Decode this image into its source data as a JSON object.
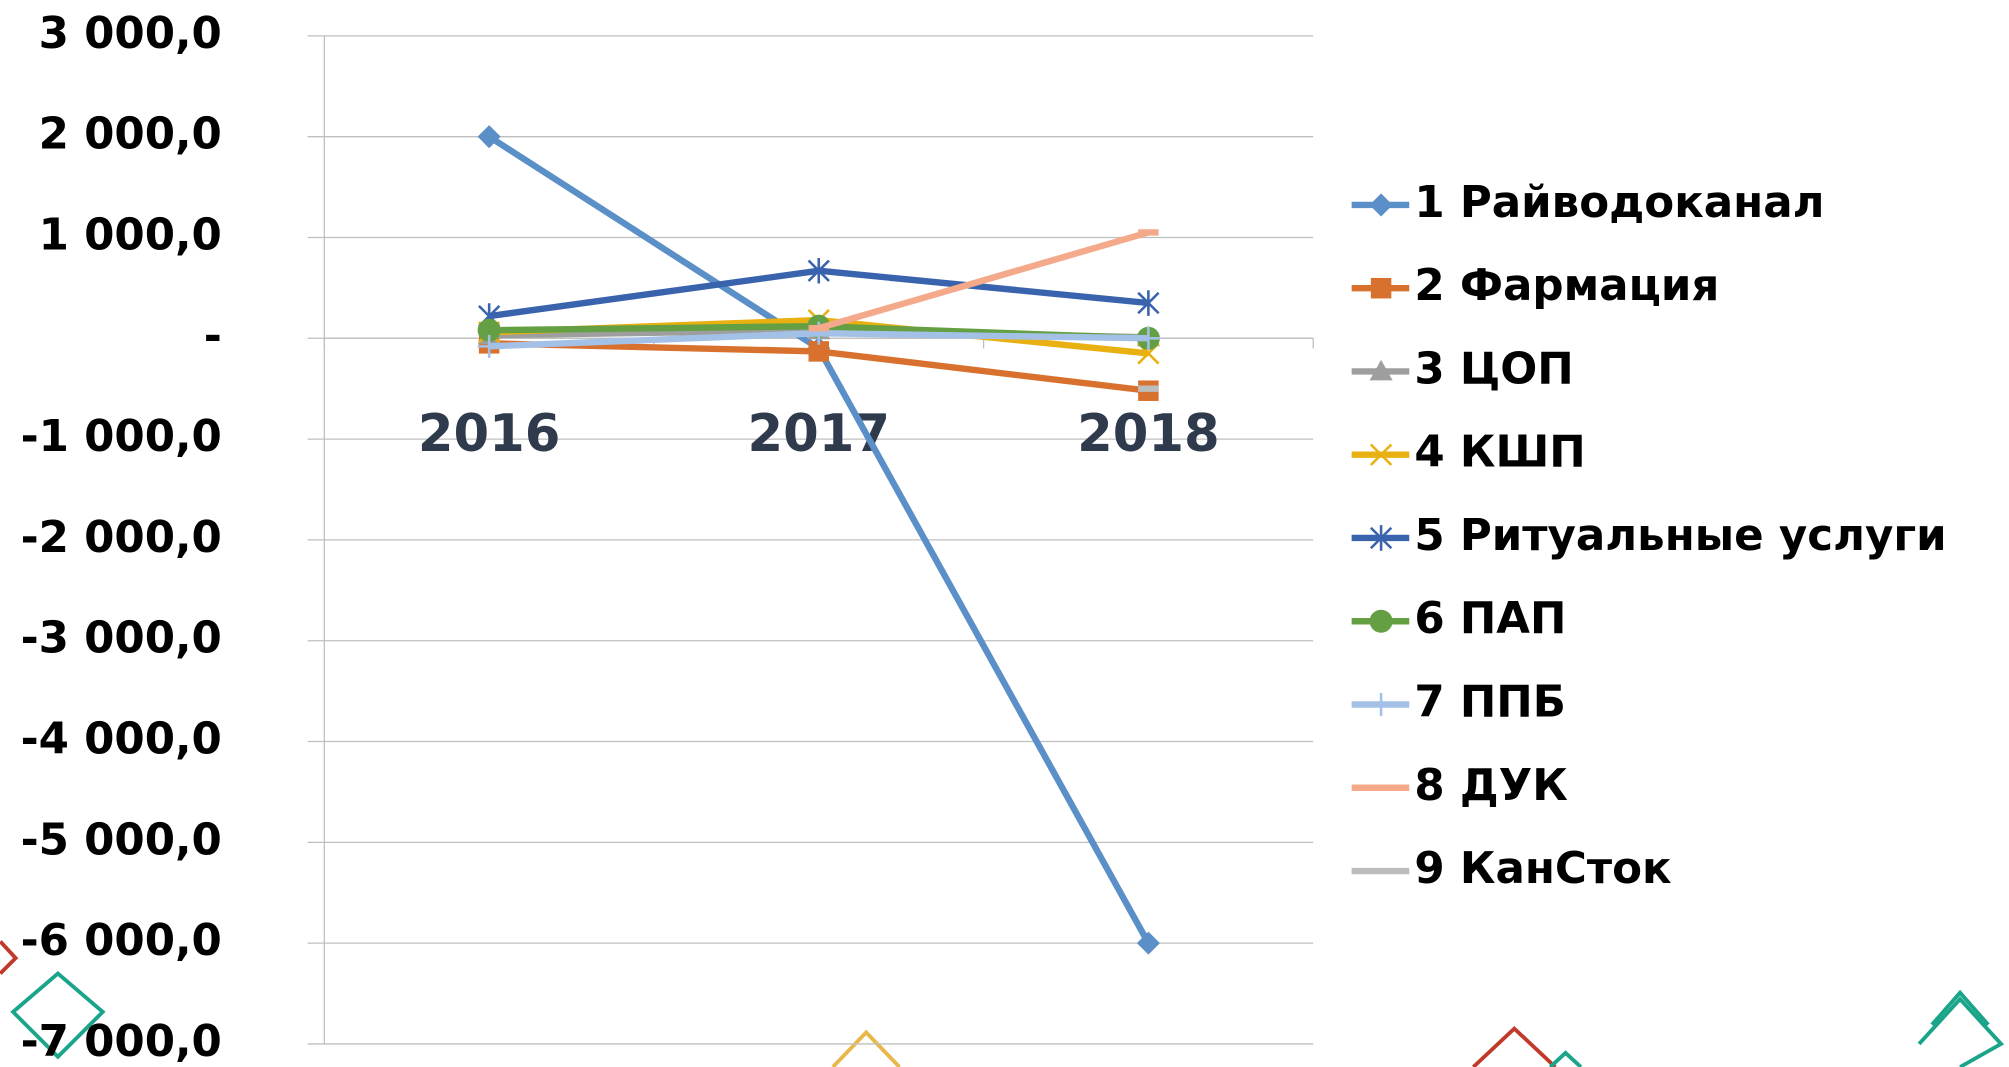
{
  "chart_data": {
    "type": "line",
    "categories": [
      "2016",
      "2017",
      "2018"
    ],
    "ylim": [
      -7000,
      3000
    ],
    "yticks": [
      {
        "value": -7000,
        "label": "-7 000,0"
      },
      {
        "value": -6000,
        "label": "-6 000,0"
      },
      {
        "value": -5000,
        "label": "-5 000,0"
      },
      {
        "value": -4000,
        "label": "-4 000,0"
      },
      {
        "value": -3000,
        "label": "-3 000,0"
      },
      {
        "value": -2000,
        "label": "-2 000,0"
      },
      {
        "value": -1000,
        "label": "-1 000,0"
      },
      {
        "value": 0,
        "label": "-"
      },
      {
        "value": 1000,
        "label": "1 000,0"
      },
      {
        "value": 2000,
        "label": "2 000,0"
      },
      {
        "value": 3000,
        "label": "3 000,0"
      }
    ],
    "grid": true,
    "legend": "right",
    "series": [
      {
        "name": "1 Райводоканал",
        "color": "#5b8fc7",
        "marker": "diamond",
        "values": [
          2000,
          -100,
          -6000
        ]
      },
      {
        "name": "2 Фармация",
        "color": "#d9712e",
        "marker": "square",
        "values": [
          -50,
          -130,
          -520
        ]
      },
      {
        "name": "3 ЦОП",
        "color": "#9e9e9e",
        "marker": "triangle",
        "values": [
          30,
          80,
          10
        ]
      },
      {
        "name": "4 КШП",
        "color": "#e8b010",
        "marker": "x",
        "values": [
          60,
          180,
          -150
        ]
      },
      {
        "name": "5 Ритуальные услуги",
        "color": "#3a63ad",
        "marker": "star",
        "values": [
          220,
          670,
          350
        ]
      },
      {
        "name": "6 ПАП",
        "color": "#64a043",
        "marker": "circle",
        "values": [
          80,
          120,
          0
        ]
      },
      {
        "name": "7 ППБ",
        "color": "#a3c1e6",
        "marker": "plus",
        "values": [
          -80,
          50,
          0
        ]
      },
      {
        "name": "8 ДУК",
        "color": "#f4a98a",
        "marker": "none",
        "values": [
          null,
          100,
          1050
        ]
      },
      {
        "name": "9 КанСток",
        "color": "#bdbdbd",
        "marker": "none",
        "values": [
          null,
          null,
          -500
        ]
      }
    ]
  }
}
